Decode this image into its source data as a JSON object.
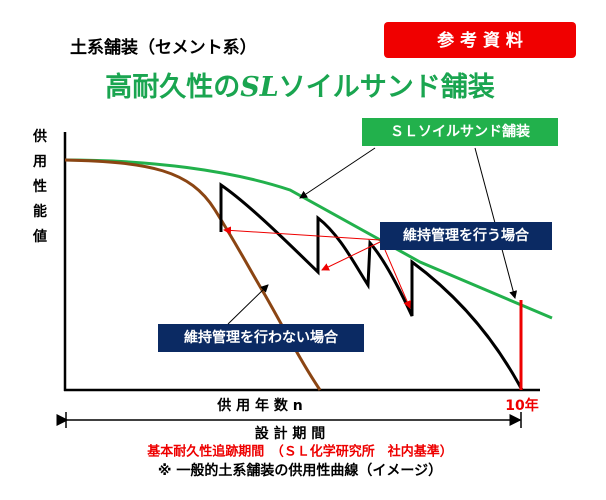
{
  "badge": "参 考 資 料",
  "subtitle": "土系舗装（セメント系）",
  "title": {
    "parts": [
      "高耐久性の",
      "SL",
      "ソイルサンド舗装"
    ]
  },
  "y_axis_label": [
    "供",
    "用",
    "性",
    "能",
    "値"
  ],
  "labels": {
    "with_maintenance_curve": "ＳＬソイルサンド舗装",
    "with_maintenance": "維持管理を行う場合",
    "without_maintenance": "維持管理を行わない場合"
  },
  "x_axis": {
    "label": "供 用 年 数 n",
    "end": "10年"
  },
  "design_period": "設 計 期 間",
  "basis": "基本耐久性追跡期間　（ＳＬ化学研究所　社内基準）",
  "footnote": "※ 一般的土系舗装の供用性曲線（イメージ）"
}
